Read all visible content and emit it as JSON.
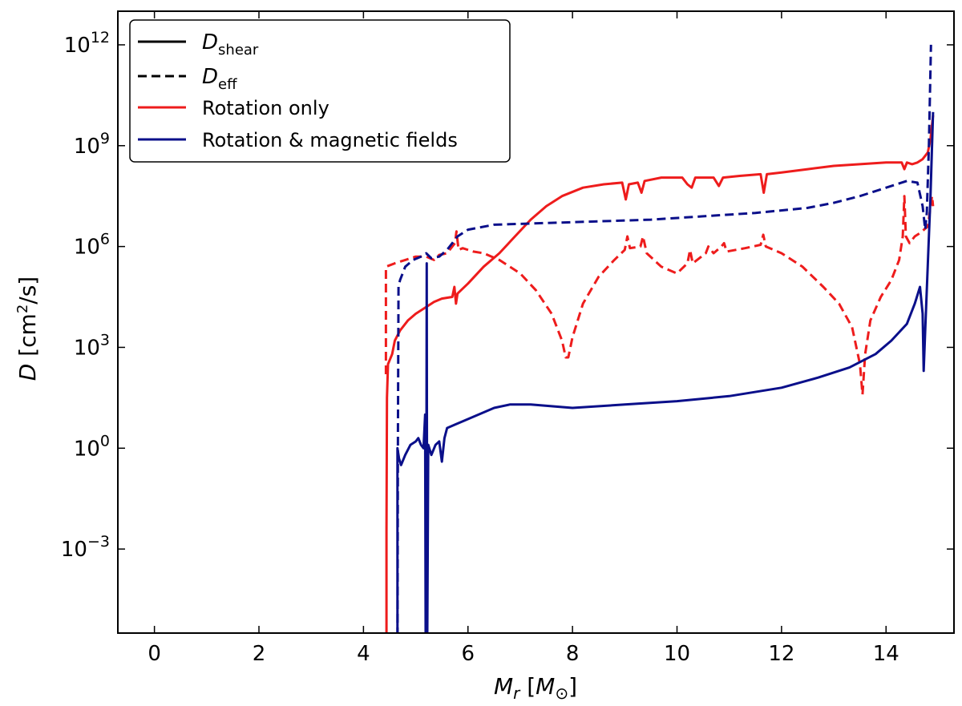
{
  "chart_data": {
    "type": "line",
    "xlabel": "M_r [M_⊙]",
    "ylabel": "D [cm²/s]",
    "xlim": [
      -0.7,
      15.3
    ],
    "ylim_log10": [
      -5.5,
      13.0
    ],
    "yscale": "log",
    "x_ticks": [
      0,
      2,
      4,
      6,
      8,
      10,
      12,
      14
    ],
    "y_ticks": [
      {
        "exp": 0,
        "base": "10",
        "power": "0"
      },
      {
        "exp": 3,
        "base": "10",
        "power": "3"
      },
      {
        "exp": 6,
        "base": "10",
        "power": "6"
      },
      {
        "exp": 9,
        "base": "10",
        "power": "9"
      },
      {
        "exp": 12,
        "base": "10",
        "power": "12"
      },
      {
        "exp": -3,
        "base": "10",
        "power": "−3"
      }
    ],
    "colors": {
      "rotation_only": "#ee1c1c",
      "magnetic": "#0a0f8a",
      "axis": "#000000"
    },
    "legend": {
      "placement": "top-left",
      "entries": [
        {
          "key": "shear",
          "label_main": "D",
          "label_sub": "shear",
          "style": "solid",
          "color": "#000000"
        },
        {
          "key": "eff",
          "label_main": "D",
          "label_sub": "eff",
          "style": "dashed",
          "color": "#000000"
        },
        {
          "key": "rot",
          "label": "Rotation only",
          "style": "solid",
          "color": "#ee1c1c"
        },
        {
          "key": "mag",
          "label": "Rotation & magnetic fields",
          "style": "solid",
          "color": "#0a0f8a"
        }
      ]
    },
    "series": [
      {
        "name": "D_shear (Rotation only)",
        "color": "#ee1c1c",
        "style": "solid",
        "points_log10": [
          [
            4.44,
            -6
          ],
          [
            4.44,
            -2.5
          ],
          [
            4.45,
            1.5
          ],
          [
            4.47,
            2.5
          ],
          [
            4.55,
            2.8
          ],
          [
            4.6,
            3.2
          ],
          [
            4.7,
            3.5
          ],
          [
            4.85,
            3.8
          ],
          [
            5.0,
            4.0
          ],
          [
            5.2,
            4.2
          ],
          [
            5.35,
            4.35
          ],
          [
            5.5,
            4.45
          ],
          [
            5.7,
            4.5
          ],
          [
            5.74,
            4.8
          ],
          [
            5.77,
            4.3
          ],
          [
            5.8,
            4.6
          ],
          [
            6.0,
            4.9
          ],
          [
            6.3,
            5.4
          ],
          [
            6.6,
            5.8
          ],
          [
            6.9,
            6.3
          ],
          [
            7.2,
            6.8
          ],
          [
            7.5,
            7.2
          ],
          [
            7.8,
            7.5
          ],
          [
            8.2,
            7.75
          ],
          [
            8.6,
            7.85
          ],
          [
            8.95,
            7.9
          ],
          [
            9.02,
            7.4
          ],
          [
            9.08,
            7.85
          ],
          [
            9.25,
            7.9
          ],
          [
            9.32,
            7.6
          ],
          [
            9.38,
            7.95
          ],
          [
            9.7,
            8.05
          ],
          [
            10.1,
            8.05
          ],
          [
            10.2,
            7.85
          ],
          [
            10.28,
            7.75
          ],
          [
            10.35,
            8.05
          ],
          [
            10.7,
            8.05
          ],
          [
            10.8,
            7.8
          ],
          [
            10.88,
            8.05
          ],
          [
            11.2,
            8.1
          ],
          [
            11.6,
            8.15
          ],
          [
            11.66,
            7.6
          ],
          [
            11.72,
            8.15
          ],
          [
            12.0,
            8.2
          ],
          [
            12.5,
            8.3
          ],
          [
            13.0,
            8.4
          ],
          [
            13.5,
            8.45
          ],
          [
            14.0,
            8.5
          ],
          [
            14.3,
            8.5
          ],
          [
            14.35,
            8.3
          ],
          [
            14.4,
            8.5
          ],
          [
            14.5,
            8.45
          ],
          [
            14.6,
            8.5
          ],
          [
            14.7,
            8.6
          ],
          [
            14.8,
            8.8
          ],
          [
            14.85,
            9.2
          ],
          [
            14.9,
            9.9
          ]
        ]
      },
      {
        "name": "D_eff (Rotation only)",
        "color": "#ee1c1c",
        "style": "dashed",
        "points_log10": [
          [
            4.43,
            2.2
          ],
          [
            4.43,
            5.4
          ],
          [
            4.6,
            5.5
          ],
          [
            4.8,
            5.6
          ],
          [
            5.0,
            5.7
          ],
          [
            5.2,
            5.7
          ],
          [
            5.35,
            5.6
          ],
          [
            5.45,
            5.75
          ],
          [
            5.6,
            5.8
          ],
          [
            5.75,
            6.1
          ],
          [
            5.78,
            6.45
          ],
          [
            5.82,
            5.9
          ],
          [
            5.9,
            5.95
          ],
          [
            6.1,
            5.85
          ],
          [
            6.3,
            5.8
          ],
          [
            6.6,
            5.6
          ],
          [
            7.0,
            5.2
          ],
          [
            7.3,
            4.7
          ],
          [
            7.6,
            4.0
          ],
          [
            7.8,
            3.2
          ],
          [
            7.87,
            2.7
          ],
          [
            7.92,
            2.7
          ],
          [
            8.0,
            3.3
          ],
          [
            8.2,
            4.3
          ],
          [
            8.5,
            5.1
          ],
          [
            8.8,
            5.6
          ],
          [
            9.0,
            5.9
          ],
          [
            9.05,
            6.3
          ],
          [
            9.1,
            5.95
          ],
          [
            9.3,
            6.0
          ],
          [
            9.35,
            6.3
          ],
          [
            9.42,
            5.8
          ],
          [
            9.7,
            5.4
          ],
          [
            10.0,
            5.2
          ],
          [
            10.2,
            5.5
          ],
          [
            10.25,
            5.9
          ],
          [
            10.3,
            5.5
          ],
          [
            10.55,
            5.8
          ],
          [
            10.6,
            6.0
          ],
          [
            10.7,
            5.8
          ],
          [
            10.85,
            6.0
          ],
          [
            10.9,
            6.1
          ],
          [
            10.95,
            5.85
          ],
          [
            11.3,
            5.95
          ],
          [
            11.6,
            6.05
          ],
          [
            11.65,
            6.35
          ],
          [
            11.7,
            6.0
          ],
          [
            12.0,
            5.8
          ],
          [
            12.4,
            5.4
          ],
          [
            12.8,
            4.8
          ],
          [
            13.1,
            4.3
          ],
          [
            13.35,
            3.6
          ],
          [
            13.5,
            2.5
          ],
          [
            13.55,
            1.6
          ],
          [
            13.6,
            2.8
          ],
          [
            13.7,
            3.8
          ],
          [
            13.9,
            4.5
          ],
          [
            14.1,
            5.0
          ],
          [
            14.25,
            5.6
          ],
          [
            14.32,
            6.3
          ],
          [
            14.35,
            7.5
          ],
          [
            14.38,
            6.3
          ],
          [
            14.45,
            6.1
          ],
          [
            14.55,
            6.3
          ],
          [
            14.65,
            6.4
          ],
          [
            14.8,
            6.6
          ],
          [
            14.88,
            7.5
          ],
          [
            14.9,
            7.2
          ]
        ]
      },
      {
        "name": "D_shear (Rotation & magnetic fields)",
        "color": "#0a0f8a",
        "style": "solid",
        "points_log10": [
          [
            4.65,
            -6
          ],
          [
            4.65,
            0.0
          ],
          [
            4.68,
            -0.3
          ],
          [
            4.72,
            -0.5
          ],
          [
            4.8,
            -0.2
          ],
          [
            4.9,
            0.1
          ],
          [
            5.0,
            0.2
          ],
          [
            5.05,
            0.3
          ],
          [
            5.1,
            0.1
          ],
          [
            5.15,
            0.0
          ],
          [
            5.18,
            1.0
          ],
          [
            5.19,
            -6
          ],
          [
            5.2,
            -6
          ],
          [
            5.21,
            5.5
          ],
          [
            5.22,
            -6
          ],
          [
            5.24,
            0.1
          ],
          [
            5.3,
            -0.2
          ],
          [
            5.38,
            0.1
          ],
          [
            5.45,
            0.2
          ],
          [
            5.5,
            -0.4
          ],
          [
            5.55,
            0.3
          ],
          [
            5.6,
            0.6
          ],
          [
            5.75,
            0.7
          ],
          [
            5.9,
            0.8
          ],
          [
            6.2,
            1.0
          ],
          [
            6.5,
            1.2
          ],
          [
            6.8,
            1.3
          ],
          [
            7.2,
            1.3
          ],
          [
            8.0,
            1.2
          ],
          [
            9.0,
            1.3
          ],
          [
            10.0,
            1.4
          ],
          [
            11.0,
            1.55
          ],
          [
            12.0,
            1.8
          ],
          [
            12.7,
            2.1
          ],
          [
            13.3,
            2.4
          ],
          [
            13.8,
            2.8
          ],
          [
            14.1,
            3.2
          ],
          [
            14.4,
            3.7
          ],
          [
            14.55,
            4.3
          ],
          [
            14.65,
            4.8
          ],
          [
            14.7,
            4.0
          ],
          [
            14.72,
            2.3
          ],
          [
            14.75,
            3.5
          ],
          [
            14.8,
            5.5
          ],
          [
            14.85,
            7.5
          ],
          [
            14.9,
            10.0
          ]
        ]
      },
      {
        "name": "D_eff (Rotation & magnetic fields)",
        "color": "#0a0f8a",
        "style": "dashed",
        "points_log10": [
          [
            4.65,
            -6
          ],
          [
            4.66,
            0.5
          ],
          [
            4.67,
            4.8
          ],
          [
            4.7,
            5.0
          ],
          [
            4.8,
            5.4
          ],
          [
            4.95,
            5.6
          ],
          [
            5.1,
            5.7
          ],
          [
            5.2,
            5.8
          ],
          [
            5.3,
            5.65
          ],
          [
            5.45,
            5.7
          ],
          [
            5.6,
            5.9
          ],
          [
            5.8,
            6.3
          ],
          [
            6.0,
            6.5
          ],
          [
            6.5,
            6.65
          ],
          [
            7.5,
            6.7
          ],
          [
            8.5,
            6.75
          ],
          [
            9.5,
            6.8
          ],
          [
            10.5,
            6.9
          ],
          [
            11.5,
            7.0
          ],
          [
            12.5,
            7.15
          ],
          [
            13.0,
            7.3
          ],
          [
            13.5,
            7.5
          ],
          [
            14.0,
            7.75
          ],
          [
            14.4,
            7.95
          ],
          [
            14.6,
            7.9
          ],
          [
            14.7,
            7.2
          ],
          [
            14.75,
            6.5
          ],
          [
            14.78,
            7.0
          ],
          [
            14.82,
            9.0
          ],
          [
            14.86,
            12.0
          ]
        ]
      }
    ]
  }
}
